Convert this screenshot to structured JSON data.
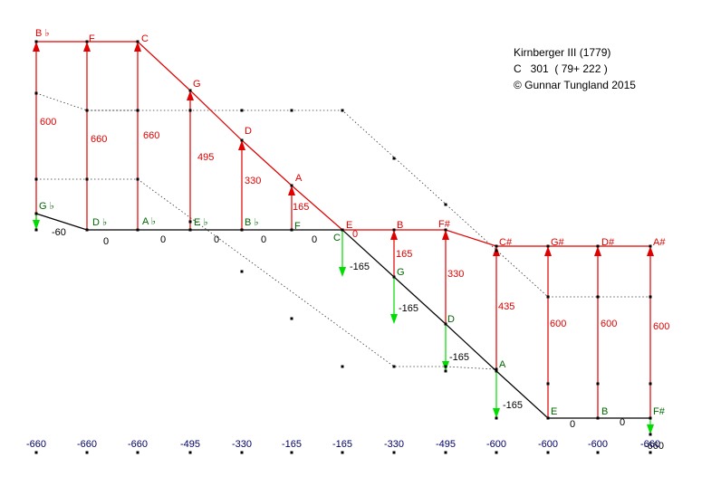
{
  "info": {
    "title": "Kirnberger III (1779)",
    "line2": "C   301  ( 79+ 222 )",
    "copyright": "© Gunnar Tungland 2015"
  },
  "colors": {
    "upper": "#e00000",
    "lower": "#000000",
    "note_green": "#006600",
    "down_arrow": "#00dd00",
    "bottom": "#000066"
  },
  "upper_notes": [
    "B ♭",
    "F",
    "C",
    "G",
    "D",
    "A",
    "E",
    "B",
    "F#",
    "C#",
    "G#",
    "D#",
    "A#"
  ],
  "upper_values": [
    "600",
    "660",
    "660",
    "495",
    "330",
    "165",
    "0",
    "165",
    "330",
    "435",
    "600",
    "600",
    "600"
  ],
  "lower_notes": [
    "G ♭",
    "D ♭",
    "A ♭",
    "E ♭",
    "B ♭",
    "F",
    "C",
    "G",
    "D",
    "A",
    "E",
    "B",
    "F#"
  ],
  "lower_values": [
    "-60",
    "0",
    "0",
    "0",
    "0",
    "0",
    "-165",
    "-165",
    "-165",
    "-165",
    "0",
    "0",
    "-660"
  ],
  "bottom_values": [
    "-660",
    "-660",
    "-660",
    "-495",
    "-330",
    "-165",
    "-165",
    "-330",
    "-495",
    "-600",
    "-600",
    "-600",
    "-660"
  ]
}
